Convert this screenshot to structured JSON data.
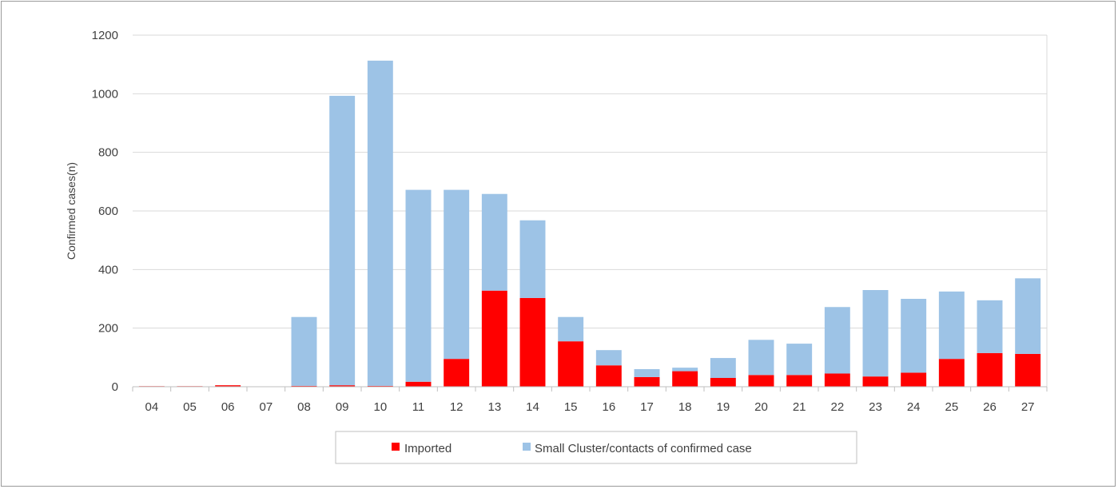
{
  "chart_data": {
    "type": "bar",
    "stacked": true,
    "title": "",
    "xlabel": "",
    "ylabel": "Confirmed cases(n)",
    "ylim": [
      0,
      1200
    ],
    "yticks": [
      0,
      200,
      400,
      600,
      800,
      1000,
      1200
    ],
    "grid": true,
    "legend_position": "bottom",
    "categories": [
      "04",
      "05",
      "06",
      "07",
      "08",
      "09",
      "10",
      "11",
      "12",
      "13",
      "14",
      "15",
      "16",
      "17",
      "18",
      "19",
      "20",
      "21",
      "22",
      "23",
      "24",
      "25",
      "26",
      "27"
    ],
    "series": [
      {
        "name": "Imported",
        "color": "#ff0000",
        "values": [
          2,
          2,
          5,
          0,
          3,
          5,
          3,
          17,
          95,
          328,
          303,
          155,
          73,
          33,
          53,
          30,
          40,
          40,
          45,
          35,
          48,
          95,
          115,
          112
        ]
      },
      {
        "name": "Small Cluster/contacts of confirmed case",
        "color": "#9dc3e6",
        "values": [
          0,
          0,
          0,
          0,
          235,
          988,
          1110,
          655,
          577,
          330,
          265,
          83,
          52,
          27,
          12,
          68,
          120,
          107,
          227,
          295,
          252,
          230,
          180,
          258
        ]
      }
    ]
  }
}
